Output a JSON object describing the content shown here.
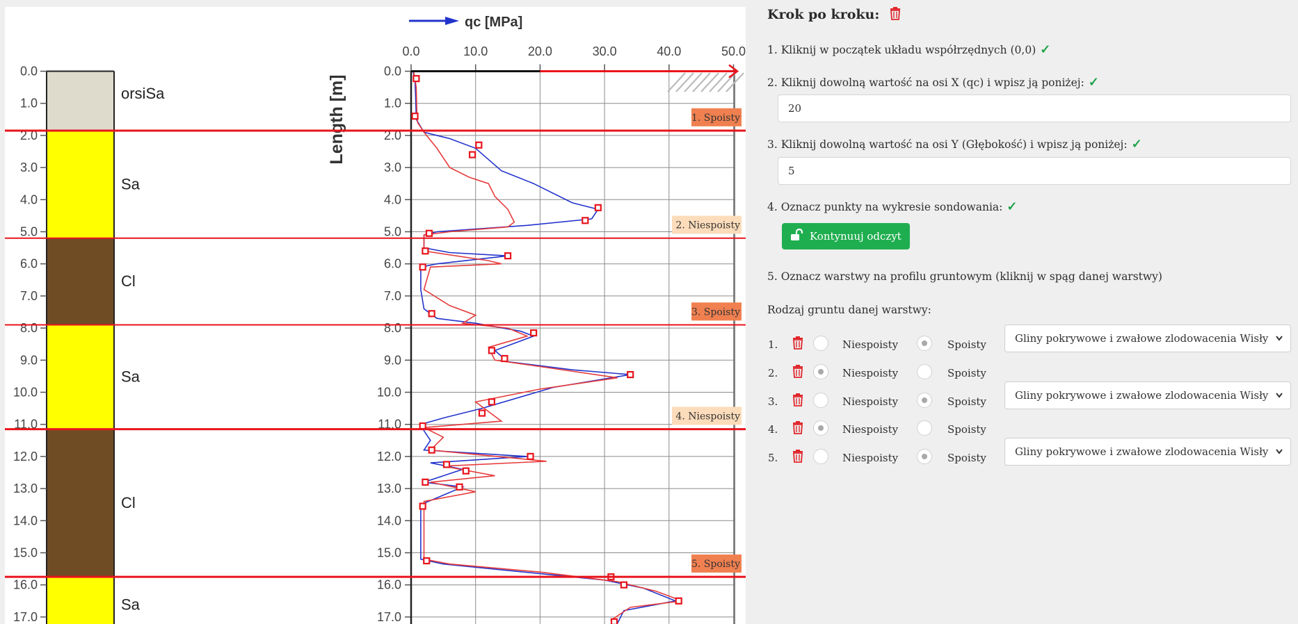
{
  "chart_data": {
    "type": "line",
    "legend": "qc [MPa]",
    "xlabel": "",
    "ylabel": "Length [m]",
    "x_ticks": [
      "0.0",
      "10.0",
      "20.0",
      "30.0",
      "40.0",
      "50.0"
    ],
    "xlim": [
      0,
      50
    ],
    "ylim": [
      0,
      17.5
    ],
    "y_ticks": [
      "0.0",
      "1.0",
      "2.0",
      "3.0",
      "4.0",
      "5.0",
      "6.0",
      "7.0",
      "8.0",
      "9.0",
      "10.0",
      "11.0",
      "12.0",
      "13.0",
      "14.0",
      "15.0",
      "16.0",
      "17.0"
    ],
    "soil_layers": [
      {
        "name": "orsiSa",
        "top": 0.0,
        "bottom": 1.85,
        "color": "#dedbcd"
      },
      {
        "name": "Sa",
        "top": 1.85,
        "bottom": 5.2,
        "color": "#ffff00"
      },
      {
        "name": "Cl",
        "top": 5.2,
        "bottom": 7.9,
        "color": "#704c24"
      },
      {
        "name": "Sa",
        "top": 7.9,
        "bottom": 11.15,
        "color": "#ffff00"
      },
      {
        "name": "Cl",
        "top": 11.15,
        "bottom": 15.75,
        "color": "#704c24"
      },
      {
        "name": "Sa",
        "top": 15.75,
        "bottom": 17.5,
        "color": "#ffff00"
      }
    ],
    "boundaries": [
      1.85,
      5.2,
      7.9,
      11.15,
      15.75
    ],
    "layer_tags": [
      {
        "label": "1. Spoisty",
        "depth": 1.5,
        "kind": "spoisty"
      },
      {
        "label": "2. Niespoisty",
        "depth": 4.85,
        "kind": "niespoisty"
      },
      {
        "label": "3. Spoisty",
        "depth": 7.55,
        "kind": "spoisty"
      },
      {
        "label": "4. Niespoisty",
        "depth": 10.8,
        "kind": "niespoisty"
      },
      {
        "label": "5. Spoisty",
        "depth": 15.4,
        "kind": "spoisty"
      }
    ],
    "series": [
      {
        "name": "qc [MPa]",
        "color": "#2233cc",
        "points": [
          [
            0.3,
            0
          ],
          [
            0.6,
            0.3
          ],
          [
            0.7,
            0.8
          ],
          [
            0.8,
            1.5
          ],
          [
            2,
            1.9
          ],
          [
            6,
            2.1
          ],
          [
            10,
            2.4
          ],
          [
            14,
            3.1
          ],
          [
            19,
            3.5
          ],
          [
            25,
            4.1
          ],
          [
            29,
            4.3
          ],
          [
            28,
            4.6
          ],
          [
            18,
            4.8
          ],
          [
            4,
            5.0
          ],
          [
            2,
            5.1
          ],
          [
            2,
            5.5
          ],
          [
            6,
            5.65
          ],
          [
            15,
            5.75
          ],
          [
            4,
            6.0
          ],
          [
            1.5,
            6.1
          ],
          [
            1.5,
            6.8
          ],
          [
            2,
            7.4
          ],
          [
            4,
            7.7
          ],
          [
            10,
            7.85
          ],
          [
            17,
            8.1
          ],
          [
            19,
            8.25
          ],
          [
            13,
            8.7
          ],
          [
            15,
            9.05
          ],
          [
            25,
            9.3
          ],
          [
            34,
            9.45
          ],
          [
            22,
            9.85
          ],
          [
            11,
            10.5
          ],
          [
            5,
            10.8
          ],
          [
            1.5,
            11.0
          ],
          [
            2,
            11.2
          ],
          [
            3,
            11.5
          ],
          [
            2,
            11.8
          ],
          [
            18,
            12.0
          ],
          [
            3,
            12.2
          ],
          [
            8,
            12.4
          ],
          [
            2,
            12.8
          ],
          [
            8,
            12.95
          ],
          [
            1.5,
            13.5
          ],
          [
            1.5,
            15.2
          ],
          [
            5,
            15.35
          ],
          [
            15,
            15.55
          ],
          [
            30,
            15.85
          ],
          [
            36,
            16.1
          ],
          [
            41,
            16.5
          ],
          [
            33,
            16.8
          ],
          [
            32,
            17.2
          ],
          [
            30,
            17.5
          ]
        ]
      },
      {
        "name": "",
        "color": "#e63b3b",
        "points": [
          [
            0.4,
            0
          ],
          [
            0.8,
            0.5
          ],
          [
            0.9,
            1.3
          ],
          [
            1,
            1.6
          ],
          [
            2,
            1.9
          ],
          [
            4,
            2.4
          ],
          [
            6,
            3.0
          ],
          [
            9,
            3.3
          ],
          [
            12,
            3.5
          ],
          [
            13,
            3.9
          ],
          [
            15,
            4.3
          ],
          [
            16,
            4.7
          ],
          [
            15,
            4.85
          ],
          [
            6,
            5.0
          ],
          [
            2,
            5.1
          ],
          [
            2,
            5.6
          ],
          [
            12,
            5.9
          ],
          [
            14,
            6.0
          ],
          [
            3,
            6.1
          ],
          [
            2,
            6.8
          ],
          [
            6,
            7.3
          ],
          [
            10,
            7.6
          ],
          [
            8,
            7.85
          ],
          [
            15,
            8.0
          ],
          [
            18,
            8.25
          ],
          [
            12,
            8.6
          ],
          [
            13,
            9.0
          ],
          [
            20,
            9.2
          ],
          [
            32,
            9.55
          ],
          [
            20,
            9.9
          ],
          [
            10,
            10.3
          ],
          [
            14,
            10.9
          ],
          [
            2,
            11.1
          ],
          [
            5,
            11.4
          ],
          [
            3,
            11.8
          ],
          [
            21,
            12.15
          ],
          [
            5,
            12.3
          ],
          [
            13,
            12.6
          ],
          [
            3,
            12.8
          ],
          [
            10,
            13.1
          ],
          [
            2,
            13.4
          ],
          [
            2,
            15.2
          ],
          [
            6,
            15.35
          ],
          [
            20,
            15.6
          ],
          [
            32,
            15.9
          ],
          [
            38,
            16.2
          ],
          [
            42,
            16.5
          ],
          [
            34,
            16.7
          ],
          [
            31,
            17.1
          ],
          [
            32,
            17.5
          ]
        ]
      }
    ],
    "markers": [
      [
        0.8,
        0.23
      ],
      [
        0.6,
        1.4
      ],
      [
        10.5,
        2.3
      ],
      [
        9.5,
        2.6
      ],
      [
        29,
        4.25
      ],
      [
        27,
        4.65
      ],
      [
        2.8,
        5.05
      ],
      [
        2.2,
        5.6
      ],
      [
        15,
        5.75
      ],
      [
        1.8,
        6.1
      ],
      [
        3.2,
        7.55
      ],
      [
        19,
        8.15
      ],
      [
        12.5,
        8.7
      ],
      [
        14.5,
        8.95
      ],
      [
        34,
        9.45
      ],
      [
        12.5,
        10.3
      ],
      [
        11,
        10.65
      ],
      [
        1.8,
        11.05
      ],
      [
        3.2,
        11.8
      ],
      [
        18.5,
        12.0
      ],
      [
        5.5,
        12.25
      ],
      [
        8.5,
        12.45
      ],
      [
        2.2,
        12.8
      ],
      [
        7.5,
        12.95
      ],
      [
        1.8,
        13.55
      ],
      [
        2.4,
        15.25
      ],
      [
        31,
        15.75
      ],
      [
        33,
        16.0
      ],
      [
        41.5,
        16.5
      ],
      [
        31.5,
        17.15
      ]
    ]
  },
  "panel": {
    "title": "Krok po kroku:",
    "step1": "1. Kliknij w początek układu współrzędnych (0,0)",
    "step2": "2. Kliknij dowolną wartość na osi X (qc) i wpisz ją poniżej:",
    "step2_value": "20",
    "step3": "3. Kliknij dowolną wartość na osi Y (Głębokość) i wpisz ją poniżej:",
    "step3_value": "5",
    "step4": "4. Oznacz punkty na wykresie sondowania:",
    "continue_button": "Kontynuuj odczyt",
    "step5": "5. Oznacz warstwy na profilu gruntowym (kliknij w spąg danej warstwy)",
    "soil_type_label": "Rodzaj gruntu danej warstwy:",
    "check": "✓",
    "opt_niespoisty": "Niespoisty",
    "opt_spoisty": "Spoisty",
    "layers": [
      {
        "num": "1.",
        "selected": "spoisty",
        "select_value": "Gliny pokrywowe i zwałowe zlodowacenia Wisły"
      },
      {
        "num": "2.",
        "selected": "niespoisty",
        "select_value": ""
      },
      {
        "num": "3.",
        "selected": "spoisty",
        "select_value": "Gliny pokrywowe i zwałowe zlodowacenia Wisły"
      },
      {
        "num": "4.",
        "selected": "niespoisty",
        "select_value": ""
      },
      {
        "num": "5.",
        "selected": "spoisty",
        "select_value": "Gliny pokrywowe i zwałowe zlodowacenia Wisły"
      }
    ]
  },
  "colors": {
    "accent_green": "#1fae4f",
    "delete_red": "#e0262b",
    "boundary_red": "#e8141c",
    "spoisty_tag": "#f08050",
    "niespoisty_tag": "#fcdcba"
  }
}
